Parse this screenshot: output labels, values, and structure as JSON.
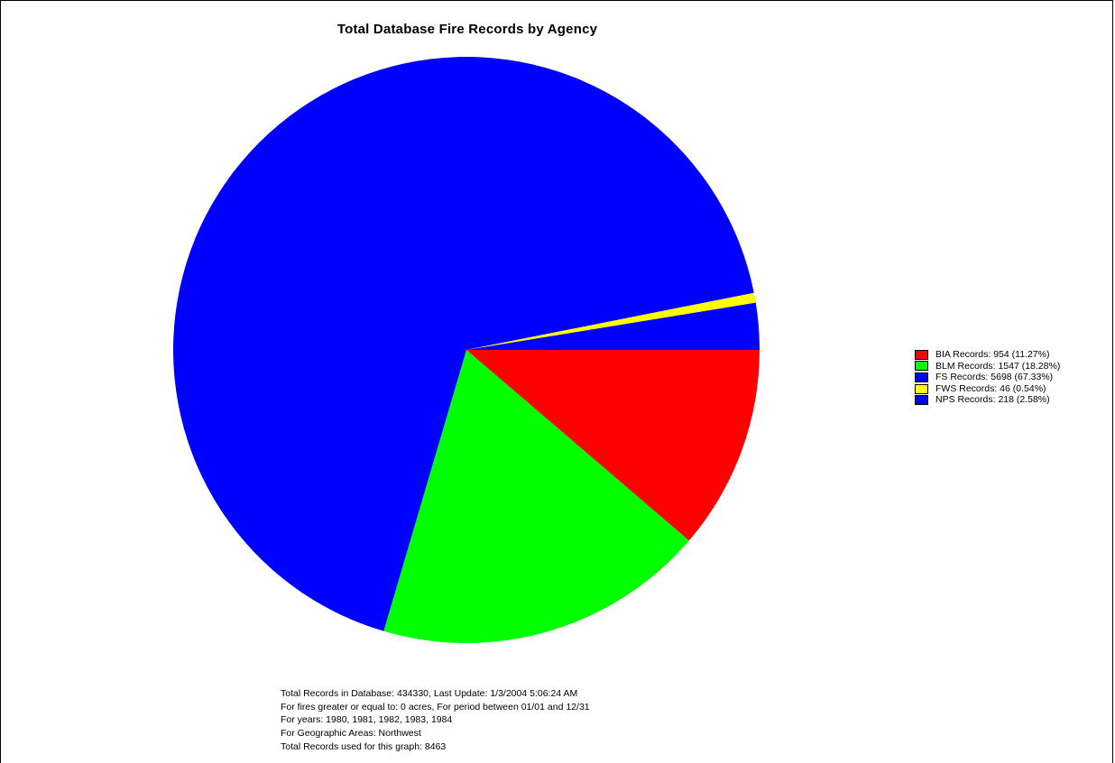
{
  "chart_data": {
    "type": "pie",
    "title": "Total Database Fire Records by Agency",
    "slices": [
      {
        "label": "BIA Records: 954 (11.27%)",
        "value": 954,
        "percent": 11.27,
        "color": "#ff0000"
      },
      {
        "label": "BLM Records: 1547 (18.28%)",
        "value": 1547,
        "percent": 18.28,
        "color": "#00ff00"
      },
      {
        "label": "FS Records: 5698 (67.33%)",
        "value": 5698,
        "percent": 67.33,
        "color": "#0000ff"
      },
      {
        "label": "FWS Records: 46 (0.54%)",
        "value": 46,
        "percent": 0.54,
        "color": "#ffff00"
      },
      {
        "label": "NPS Records: 218 (2.58%)",
        "value": 218,
        "percent": 2.58,
        "color": "#0000ff"
      }
    ],
    "legend_position": "right"
  },
  "notes": [
    "Total Records in Database: 434330, Last Update: 1/3/2004 5:06:24 AM",
    "For fires greater or equal to: 0 acres, For period between 01/01 and 12/31",
    "For years: 1980, 1981, 1982, 1983, 1984",
    "For Geographic Areas: Northwest",
    "Total Records used for this graph: 8463"
  ]
}
